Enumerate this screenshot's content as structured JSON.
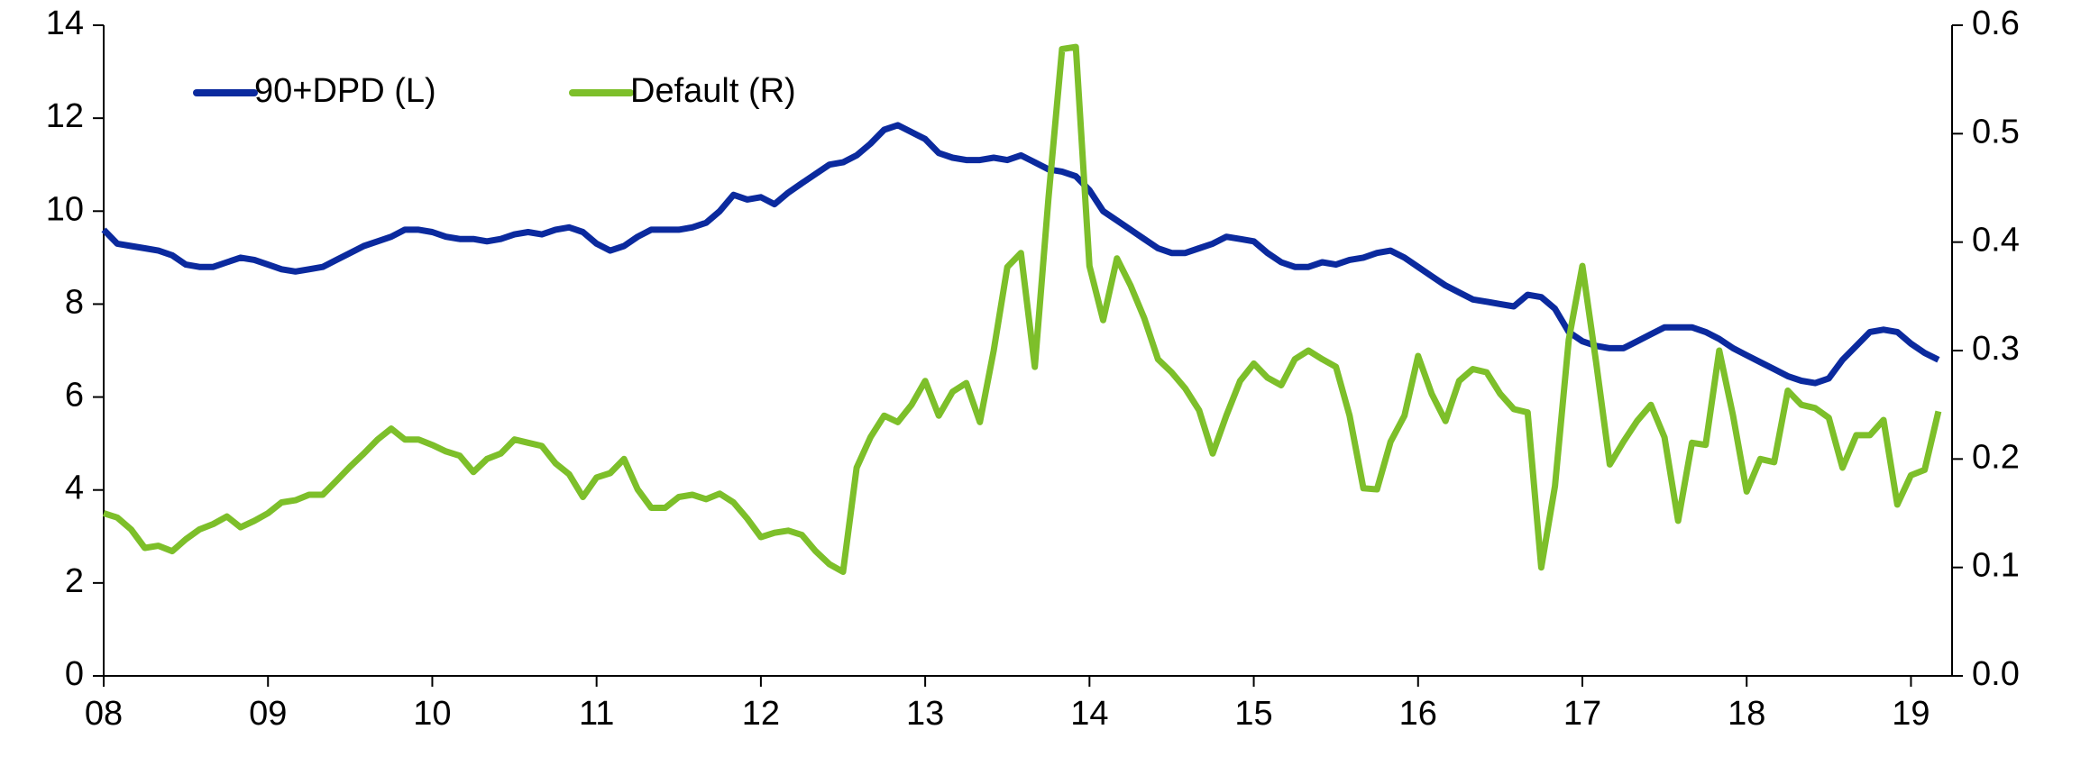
{
  "chart_data": {
    "type": "line",
    "x": [
      8,
      8.083,
      8.167,
      8.25,
      8.333,
      8.417,
      8.5,
      8.583,
      8.667,
      8.75,
      8.833,
      8.917,
      9,
      9.083,
      9.167,
      9.25,
      9.333,
      9.417,
      9.5,
      9.583,
      9.667,
      9.75,
      9.833,
      9.917,
      10,
      10.083,
      10.167,
      10.25,
      10.333,
      10.417,
      10.5,
      10.583,
      10.667,
      10.75,
      10.833,
      10.917,
      11,
      11.083,
      11.167,
      11.25,
      11.333,
      11.417,
      11.5,
      11.583,
      11.667,
      11.75,
      11.833,
      11.917,
      12,
      12.083,
      12.167,
      12.25,
      12.333,
      12.417,
      12.5,
      12.583,
      12.667,
      12.75,
      12.833,
      12.917,
      13,
      13.083,
      13.167,
      13.25,
      13.333,
      13.417,
      13.5,
      13.583,
      13.667,
      13.75,
      13.833,
      13.917,
      14,
      14.083,
      14.167,
      14.25,
      14.333,
      14.417,
      14.5,
      14.583,
      14.667,
      14.75,
      14.833,
      14.917,
      15,
      15.083,
      15.167,
      15.25,
      15.333,
      15.417,
      15.5,
      15.583,
      15.667,
      15.75,
      15.833,
      15.917,
      16,
      16.083,
      16.167,
      16.25,
      16.333,
      16.417,
      16.5,
      16.583,
      16.667,
      16.75,
      16.833,
      16.917,
      17,
      17.083,
      17.167,
      17.25,
      17.333,
      17.417,
      17.5,
      17.583,
      17.667,
      17.75,
      17.833,
      17.917,
      18,
      18.083,
      18.167,
      18.25,
      18.333,
      18.417,
      18.5,
      18.583,
      18.667,
      18.75,
      18.833,
      18.917,
      19,
      19.083,
      19.167
    ],
    "series": [
      {
        "name": "90+DPD (L)",
        "color": "#0b2a9e",
        "axis": "y",
        "values": [
          9.6,
          9.3,
          9.25,
          9.2,
          9.15,
          9.05,
          8.85,
          8.8,
          8.8,
          8.9,
          9.0,
          8.95,
          8.85,
          8.75,
          8.7,
          8.75,
          8.8,
          8.95,
          9.1,
          9.25,
          9.35,
          9.45,
          9.6,
          9.6,
          9.55,
          9.45,
          9.4,
          9.4,
          9.35,
          9.4,
          9.5,
          9.55,
          9.5,
          9.6,
          9.65,
          9.55,
          9.3,
          9.15,
          9.25,
          9.45,
          9.6,
          9.6,
          9.6,
          9.65,
          9.75,
          10.0,
          10.35,
          10.25,
          10.3,
          10.15,
          10.4,
          10.6,
          10.8,
          11.0,
          11.05,
          11.2,
          11.45,
          11.75,
          11.85,
          11.7,
          11.55,
          11.25,
          11.15,
          11.1,
          11.1,
          11.15,
          11.1,
          11.2,
          11.05,
          10.9,
          10.85,
          10.75,
          10.45,
          10.0,
          9.8,
          9.6,
          9.4,
          9.2,
          9.1,
          9.1,
          9.2,
          9.3,
          9.45,
          9.4,
          9.35,
          9.1,
          8.9,
          8.8,
          8.8,
          8.9,
          8.85,
          8.95,
          9.0,
          9.1,
          9.15,
          9.0,
          8.8,
          8.6,
          8.4,
          8.25,
          8.1,
          8.05,
          8.0,
          7.95,
          8.2,
          8.15,
          7.9,
          7.4,
          7.2,
          7.1,
          7.05,
          7.05,
          7.2,
          7.35,
          7.5,
          7.5,
          7.5,
          7.4,
          7.25,
          7.05,
          6.9,
          6.75,
          6.6,
          6.45,
          6.35,
          6.3,
          6.4,
          6.8,
          7.1,
          7.4,
          7.45,
          7.4,
          7.15,
          6.95,
          6.8
        ]
      },
      {
        "name": "Default (R)",
        "color": "#7dbf2a",
        "axis": "y2",
        "values": [
          0.15,
          0.146,
          0.135,
          0.118,
          0.12,
          0.115,
          0.126,
          0.135,
          0.14,
          0.147,
          0.137,
          0.143,
          0.15,
          0.16,
          0.162,
          0.167,
          0.167,
          0.18,
          0.193,
          0.205,
          0.218,
          0.228,
          0.218,
          0.218,
          0.213,
          0.207,
          0.203,
          0.188,
          0.2,
          0.205,
          0.218,
          0.215,
          0.212,
          0.196,
          0.186,
          0.165,
          0.183,
          0.187,
          0.2,
          0.172,
          0.155,
          0.155,
          0.165,
          0.167,
          0.163,
          0.168,
          0.16,
          0.145,
          0.128,
          0.132,
          0.134,
          0.13,
          0.115,
          0.103,
          0.096,
          0.192,
          0.22,
          0.24,
          0.234,
          0.25,
          0.272,
          0.24,
          0.262,
          0.27,
          0.234,
          0.3,
          0.377,
          0.39,
          0.285,
          0.44,
          0.578,
          0.58,
          0.378,
          0.328,
          0.385,
          0.36,
          0.33,
          0.292,
          0.28,
          0.265,
          0.245,
          0.205,
          0.24,
          0.272,
          0.288,
          0.275,
          0.268,
          0.292,
          0.3,
          0.292,
          0.285,
          0.24,
          0.173,
          0.172,
          0.216,
          0.24,
          0.295,
          0.26,
          0.235,
          0.272,
          0.283,
          0.28,
          0.26,
          0.246,
          0.243,
          0.1,
          0.175,
          0.31,
          0.378,
          0.29,
          0.195,
          0.216,
          0.235,
          0.25,
          0.22,
          0.143,
          0.215,
          0.213,
          0.3,
          0.24,
          0.17,
          0.2,
          0.197,
          0.263,
          0.25,
          0.247,
          0.238,
          0.192,
          0.222,
          0.222,
          0.236,
          0.158,
          0.185,
          0.19,
          0.244
        ]
      }
    ],
    "xlim": [
      8,
      19.25
    ],
    "xticks": [
      {
        "value": 8,
        "label": "08"
      },
      {
        "value": 9,
        "label": "09"
      },
      10,
      11,
      12,
      13,
      14,
      15,
      16,
      17,
      18,
      19
    ],
    "ylim": [
      0,
      14
    ],
    "yticks": [
      0,
      2,
      4,
      6,
      8,
      10,
      12,
      14
    ],
    "y2lim": [
      0,
      0.6
    ],
    "y2ticks": [
      {
        "value": 0,
        "label": "0.0"
      },
      0.1,
      0.2,
      0.3,
      0.4,
      0.5,
      0.6
    ],
    "legend": "top-left",
    "grid": false
  }
}
